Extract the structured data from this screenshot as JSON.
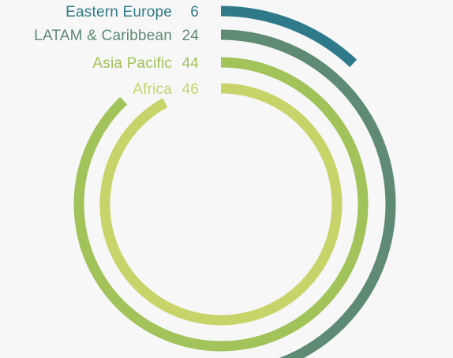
{
  "chart_data": {
    "type": "radial-bar",
    "title": "",
    "max_value": 50,
    "series": [
      {
        "name": "Eastern Europe",
        "value": 6,
        "color": "#2f7a8a"
      },
      {
        "name": "LATAM & Caribbean",
        "value": 24,
        "color": "#5f8a74"
      },
      {
        "name": "Asia Pacific",
        "value": 44,
        "color": "#a2c25a"
      },
      {
        "name": "Africa",
        "value": 46,
        "color": "#c8d36a"
      }
    ]
  }
}
